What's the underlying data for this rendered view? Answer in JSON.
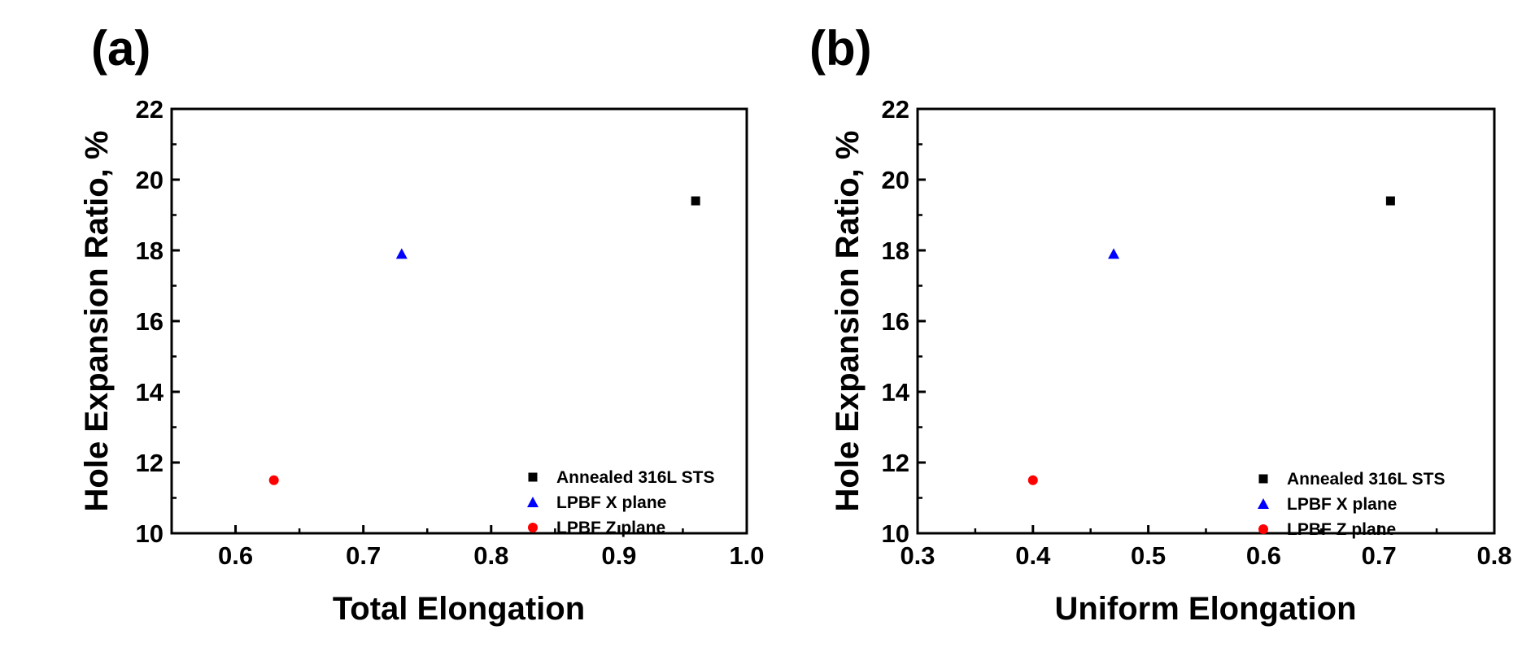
{
  "chart_data": [
    {
      "panel_label": "(a)",
      "type": "scatter",
      "xlabel": "Total Elongation",
      "ylabel": "Hole Expansion Ratio, %",
      "xlim": [
        0.55,
        1.0
      ],
      "ylim": [
        10,
        22
      ],
      "xticks": [
        0.6,
        0.7,
        0.8,
        0.9,
        1.0
      ],
      "xtick_labels": [
        "0.6",
        "0.7",
        "0.8",
        "0.9",
        "1.0"
      ],
      "yticks": [
        10,
        12,
        14,
        16,
        18,
        20,
        22
      ],
      "ytick_labels": [
        "10",
        "12",
        "14",
        "16",
        "18",
        "20",
        "22"
      ],
      "grid": false,
      "legend_position": "bottom-right",
      "series": [
        {
          "name": "Annealed 316L STS",
          "marker": "square",
          "color": "#000000",
          "points": [
            {
              "x": 0.96,
              "y": 19.4
            }
          ]
        },
        {
          "name": "LPBF X plane",
          "marker": "triangle",
          "color": "#0000ff",
          "points": [
            {
              "x": 0.73,
              "y": 17.9
            }
          ]
        },
        {
          "name": "LPBF Z plane",
          "marker": "circle",
          "color": "#ff0000",
          "points": [
            {
              "x": 0.63,
              "y": 11.5
            }
          ]
        }
      ]
    },
    {
      "panel_label": "(b)",
      "type": "scatter",
      "xlabel": "Uniform Elongation",
      "ylabel": "Hole Expansion Ratio, %",
      "xlim": [
        0.3,
        0.8
      ],
      "ylim": [
        10,
        22
      ],
      "xticks": [
        0.3,
        0.4,
        0.5,
        0.6,
        0.7,
        0.8
      ],
      "xtick_labels": [
        "0.3",
        "0.4",
        "0.5",
        "0.6",
        "0.7",
        "0.8"
      ],
      "yticks": [
        10,
        12,
        14,
        16,
        18,
        20,
        22
      ],
      "ytick_labels": [
        "10",
        "12",
        "14",
        "16",
        "18",
        "20",
        "22"
      ],
      "grid": false,
      "legend_position": "bottom-right",
      "series": [
        {
          "name": "Annealed 316L STS",
          "marker": "square",
          "color": "#000000",
          "points": [
            {
              "x": 0.71,
              "y": 19.4
            }
          ]
        },
        {
          "name": "LPBF X plane",
          "marker": "triangle",
          "color": "#0000ff",
          "points": [
            {
              "x": 0.47,
              "y": 17.9
            }
          ]
        },
        {
          "name": "LPBF Z plane",
          "marker": "circle",
          "color": "#ff0000",
          "points": [
            {
              "x": 0.4,
              "y": 11.5
            }
          ]
        }
      ]
    }
  ]
}
